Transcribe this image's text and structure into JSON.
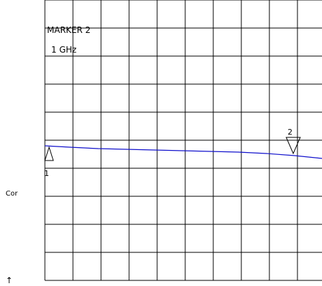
{
  "annotation": {
    "title": "MARKER 2",
    "value": "1 GHz"
  },
  "side": {
    "status_label": "Cor",
    "arrow_glyph": "↑"
  },
  "markers": [
    {
      "label": "1",
      "direction": "up"
    },
    {
      "label": "2",
      "direction": "down"
    }
  ],
  "trace": {
    "color": "#1010cc"
  },
  "grid": {
    "columns": 10,
    "rows": 10,
    "color": "#000000"
  }
}
